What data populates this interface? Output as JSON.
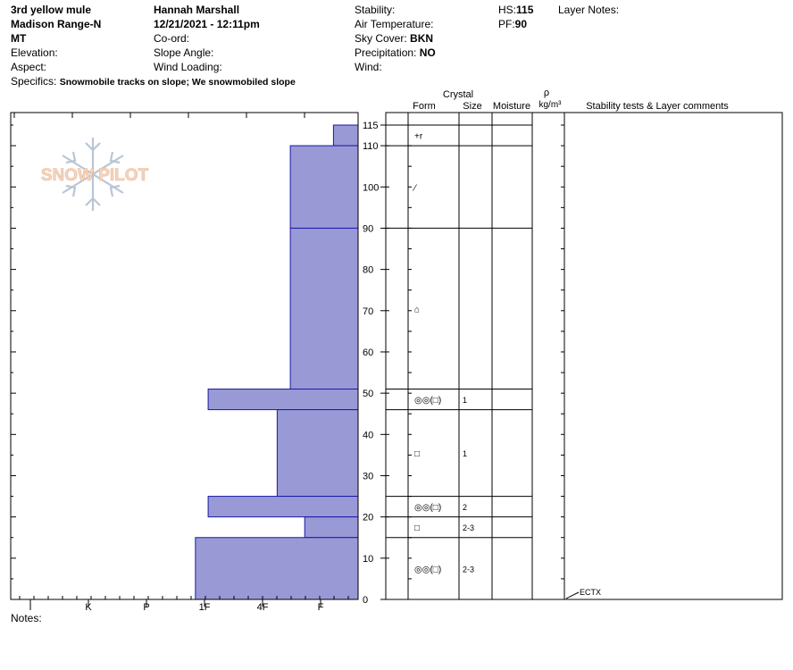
{
  "header": {
    "location": "3rd yellow mule",
    "range": "Madison Range-N",
    "state": "MT",
    "elevation_label": "Elevation:",
    "aspect_label": "Aspect:",
    "specifics_label": "Specifics:",
    "specifics_value": "Snowmobile tracks on slope; We snowmobiled slope",
    "observer": "Hannah Marshall",
    "datetime": "12/21/2021 - 12:11pm",
    "coord_label": "Co-ord:",
    "slope_label": "Slope Angle:",
    "wind_loading_label": "Wind Loading:",
    "stability_label": "Stability:",
    "air_temp_label": "Air Temperature:",
    "sky_label": "Sky Cover:",
    "sky_value": "BKN",
    "precip_label": "Precipitation:",
    "precip_value": "NO",
    "wind_label": "Wind:",
    "hs_label": "HS:",
    "hs_value": "115",
    "pf_label": "PF:",
    "pf_value": "90",
    "layer_notes_label": "Layer Notes:",
    "notes_label": "Notes:"
  },
  "logo": {
    "text": "SNOW PILOT"
  },
  "columns": {
    "crystal": "Crystal",
    "form": "Form",
    "size": "Size",
    "moisture": "Moisture",
    "rho": "ρ",
    "density_unit": "kg/m³",
    "comments": "Stability tests & Layer comments"
  },
  "colors": {
    "bar_fill": "#9999d6",
    "bar_stroke": "#1a1aa6"
  },
  "chart_data": {
    "type": "bar",
    "hardness_scale": [
      "I",
      "K",
      "P",
      "1F",
      "4F",
      "F"
    ],
    "y_ticks": [
      "0",
      "10",
      "20",
      "30",
      "40",
      "50",
      "60",
      "70",
      "80",
      "90",
      "100",
      "110",
      "115"
    ],
    "ylim": [
      0,
      115
    ],
    "layers": [
      {
        "top": 115,
        "bottom": 110,
        "hardness": 0.6,
        "form": "+r",
        "size": ""
      },
      {
        "top": 110,
        "bottom": 90,
        "hardness": 1.65,
        "form": "⁄",
        "size": ""
      },
      {
        "top": 90,
        "bottom": 51,
        "hardness": 1.65,
        "form": "⌂",
        "size": ""
      },
      {
        "top": 51,
        "bottom": 46,
        "hardness": 3.65,
        "form": "◎◎(□)",
        "size": "1"
      },
      {
        "top": 46,
        "bottom": 25,
        "hardness": 1.97,
        "form": "□",
        "size": "1"
      },
      {
        "top": 25,
        "bottom": 20,
        "hardness": 3.65,
        "form": "◎◎(□)",
        "size": "2"
      },
      {
        "top": 20,
        "bottom": 15,
        "hardness": 1.3,
        "form": "□",
        "size": "2-3"
      },
      {
        "top": 15,
        "bottom": 0,
        "hardness": 3.96,
        "form": "◎◎(□)",
        "size": "2-3"
      }
    ],
    "test_results": [
      {
        "depth": 0,
        "label": "ECTX"
      }
    ]
  }
}
